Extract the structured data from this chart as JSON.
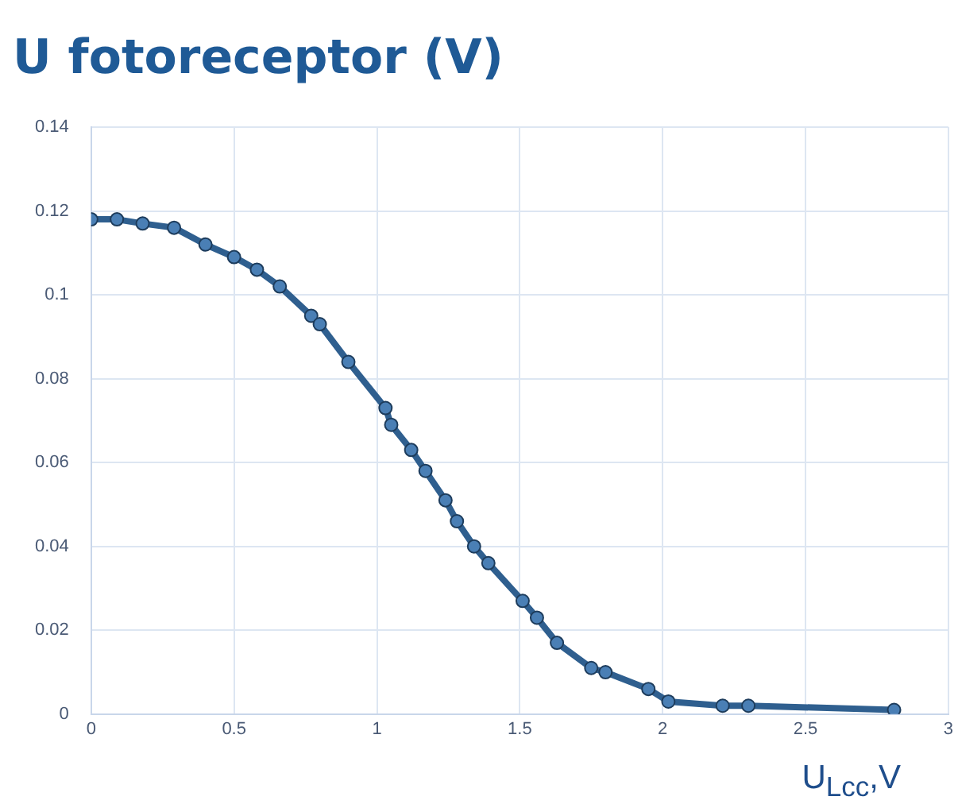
{
  "chart_data": {
    "type": "line",
    "title": "U fotoreceptor (V)",
    "xlabel": "U$_{Lcc}$,V",
    "x": [
      0,
      0.09,
      0.18,
      0.29,
      0.4,
      0.5,
      0.58,
      0.66,
      0.77,
      0.8,
      0.9,
      1.03,
      1.05,
      1.12,
      1.17,
      1.24,
      1.28,
      1.34,
      1.39,
      1.51,
      1.56,
      1.63,
      1.75,
      1.8,
      1.95,
      2.02,
      2.21,
      2.3,
      2.81
    ],
    "series": [
      {
        "color": "#2f5f8f",
        "values": [
          0.118,
          0.118,
          0.117,
          0.116,
          0.112,
          0.109,
          0.106,
          0.102,
          0.095,
          0.093,
          0.084,
          0.073,
          0.069,
          0.063,
          0.058,
          0.051,
          0.046,
          0.04,
          0.036,
          0.027,
          0.023,
          0.017,
          0.011,
          0.01,
          0.006,
          0.003,
          0.002,
          0.002,
          0.001
        ]
      }
    ],
    "xlim": [
      0,
      3
    ],
    "xticks": [
      0,
      0.5,
      1,
      1.5,
      2,
      2.5,
      3
    ],
    "ylim": [
      0,
      0.14
    ],
    "yticks": [
      0,
      0.02,
      0.04,
      0.06,
      0.08,
      0.1,
      0.12,
      0.14
    ],
    "grid": true,
    "legend": false,
    "marker": "circle",
    "line_style": "solid"
  }
}
